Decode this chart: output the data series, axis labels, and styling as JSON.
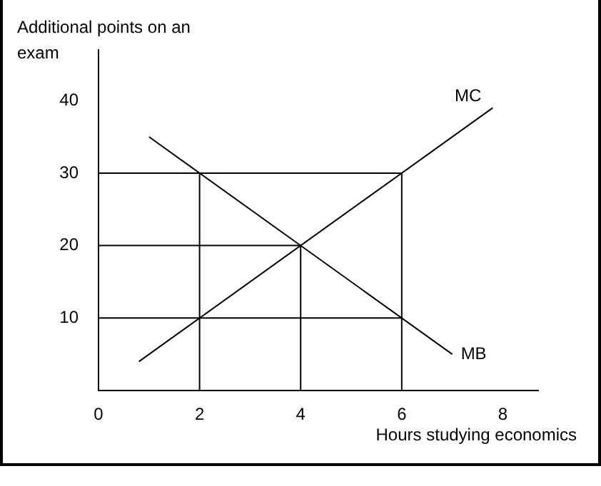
{
  "chart_data": {
    "type": "line",
    "xlabel": "Hours studying economics",
    "ylabel": "Additional points on an exam",
    "xlim": [
      0,
      8.7
    ],
    "ylim": [
      0,
      47
    ],
    "xticks": [
      0,
      2,
      4,
      6,
      8
    ],
    "yticks": [
      10,
      20,
      30,
      40
    ],
    "grid": false,
    "legend": false,
    "marker": "none",
    "line_style": "solid",
    "series": [
      {
        "name": "MC",
        "color": "#000000",
        "x": [
          0.8,
          7.8
        ],
        "values": [
          4,
          39
        ]
      },
      {
        "name": "MB",
        "color": "#000000",
        "x": [
          1,
          7
        ],
        "values": [
          35,
          5
        ]
      },
      {
        "color": "#000000",
        "x": [
          0,
          6,
          6
        ],
        "values": [
          30,
          30,
          0
        ]
      },
      {
        "color": "#000000",
        "x": [
          0,
          4,
          4
        ],
        "values": [
          20,
          20,
          0
        ]
      },
      {
        "color": "#000000",
        "x": [
          0,
          6
        ],
        "values": [
          10,
          10
        ]
      },
      {
        "color": "#000000",
        "x": [
          2,
          2
        ],
        "values": [
          0,
          30
        ]
      }
    ]
  }
}
